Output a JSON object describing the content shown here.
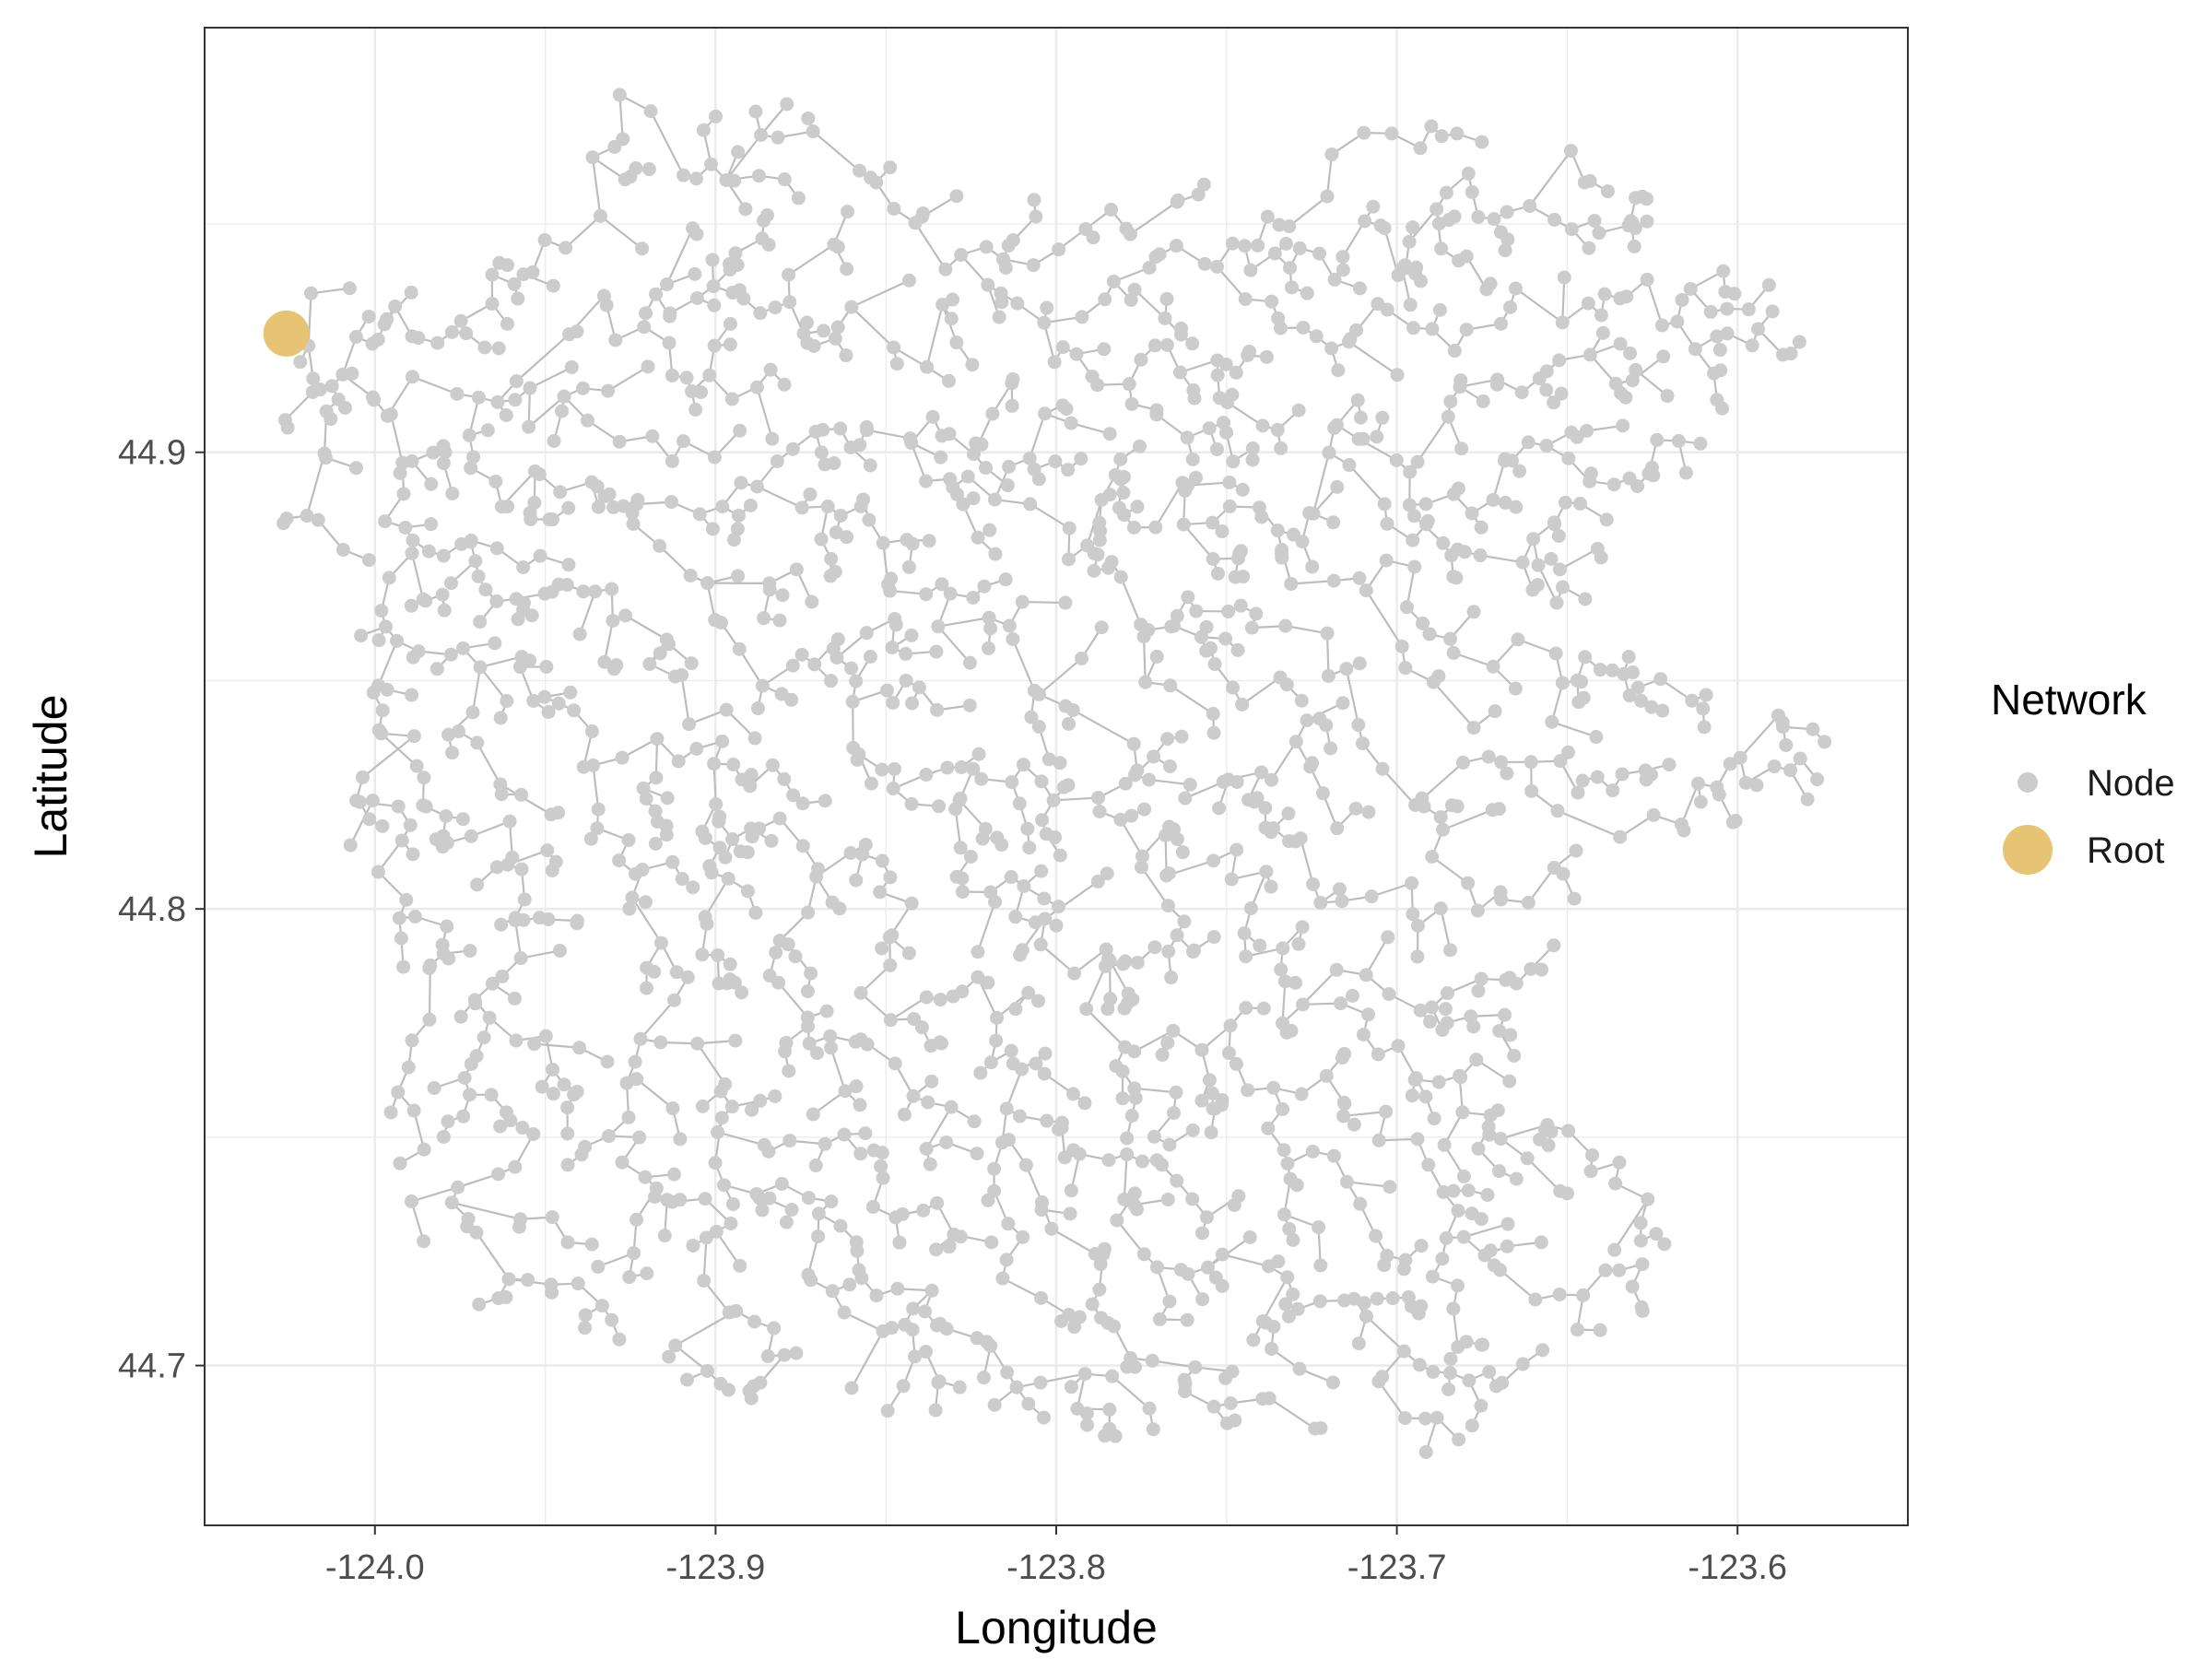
{
  "chart_data": {
    "type": "scatter",
    "xlabel": "Longitude",
    "ylabel": "Latitude",
    "xlim": [
      -124.05,
      -123.55
    ],
    "ylim": [
      44.665,
      44.993
    ],
    "x_ticks": [
      -124.0,
      -123.9,
      -123.8,
      -123.7,
      -123.6
    ],
    "x_tick_labels": [
      "-124.0",
      "-123.9",
      "-123.8",
      "-123.7",
      "-123.6"
    ],
    "y_ticks": [
      44.7,
      44.8,
      44.9
    ],
    "y_tick_labels": [
      "44.7",
      "44.8",
      "44.9"
    ],
    "grid": true,
    "legend": {
      "title": "Network",
      "position": "right",
      "entries": [
        {
          "label": "Node",
          "color": "#cccccc"
        },
        {
          "label": "Root",
          "color": "#e6c473"
        }
      ]
    },
    "root": {
      "x": -124.026,
      "y": 44.926
    },
    "edge_color": "#bdbdbd",
    "node_color": "#cccccc",
    "root_color": "#e6c473",
    "node_count": 1900,
    "seed": 7
  }
}
